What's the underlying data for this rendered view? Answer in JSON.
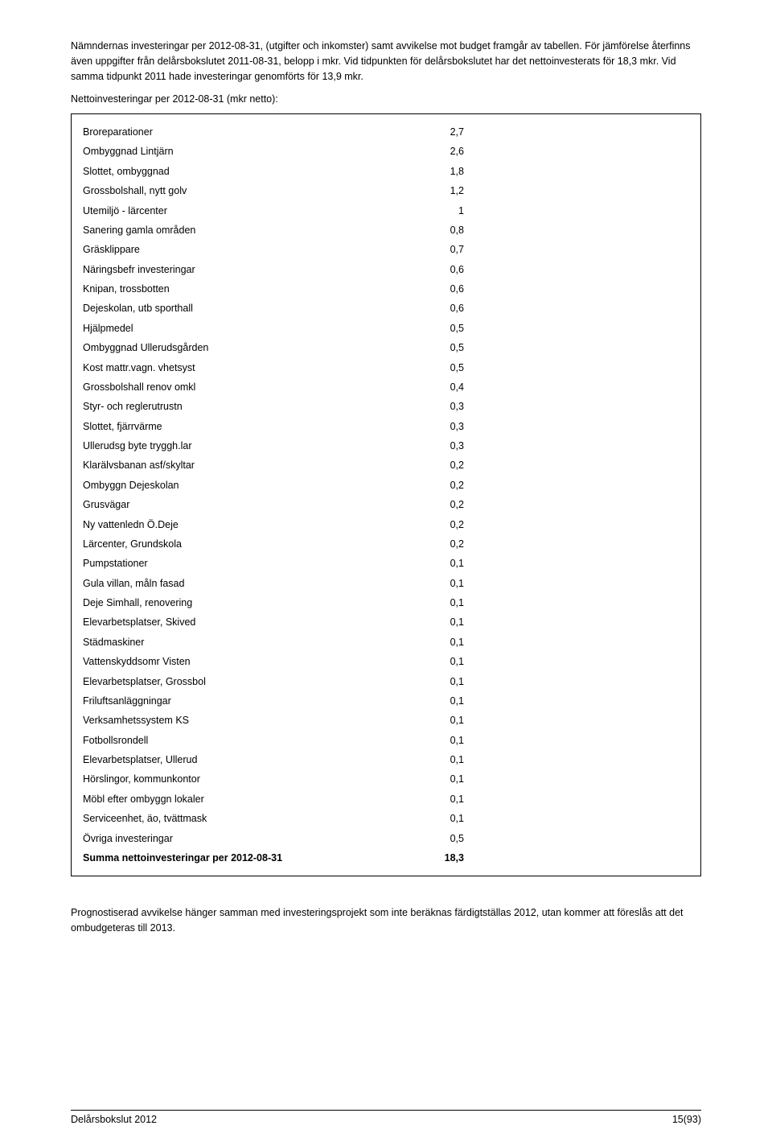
{
  "intro": "Nämndernas investeringar per 2012-08-31, (utgifter och inkomster) samt avvikelse mot budget framgår av tabellen. För jämförelse återfinns även uppgifter från delårsbokslutet 2011-08-31, belopp i mkr. Vid tidpunkten för delårsbokslutet har det nettoinvesterats för 18,3 mkr. Vid samma tidpunkt 2011 hade investeringar genomförts för 13,9 mkr.",
  "tableTitle": "Nettoinvesteringar per 2012-08-31 (mkr netto):",
  "rows": [
    {
      "label": "Broreparationer",
      "value": "2,7"
    },
    {
      "label": "Ombyggnad Lintjärn",
      "value": "2,6"
    },
    {
      "label": "Slottet, ombyggnad",
      "value": "1,8"
    },
    {
      "label": "Grossbolshall, nytt golv",
      "value": "1,2"
    },
    {
      "label": "Utemiljö - lärcenter",
      "value": "1"
    },
    {
      "label": "Sanering gamla områden",
      "value": "0,8"
    },
    {
      "label": "Gräsklippare",
      "value": "0,7"
    },
    {
      "label": "Näringsbefr investeringar",
      "value": "0,6"
    },
    {
      "label": "Knipan, trossbotten",
      "value": "0,6"
    },
    {
      "label": "Dejeskolan, utb sporthall",
      "value": "0,6"
    },
    {
      "label": "Hjälpmedel",
      "value": "0,5"
    },
    {
      "label": "Ombyggnad Ullerudsgården",
      "value": "0,5"
    },
    {
      "label": "Kost mattr.vagn. vhetsyst",
      "value": "0,5"
    },
    {
      "label": "Grossbolshall renov omkl",
      "value": "0,4"
    },
    {
      "label": "Styr- och reglerutrustn",
      "value": "0,3"
    },
    {
      "label": "Slottet, fjärrvärme",
      "value": "0,3"
    },
    {
      "label": "Ullerudsg byte tryggh.lar",
      "value": "0,3"
    },
    {
      "label": "Klarälvsbanan asf/skyltar",
      "value": "0,2"
    },
    {
      "label": "Ombyggn Dejeskolan",
      "value": "0,2"
    },
    {
      "label": "Grusvägar",
      "value": "0,2"
    },
    {
      "label": "Ny vattenledn Ö.Deje",
      "value": "0,2"
    },
    {
      "label": "Lärcenter, Grundskola",
      "value": "0,2"
    },
    {
      "label": "Pumpstationer",
      "value": "0,1"
    },
    {
      "label": "Gula villan, måln fasad",
      "value": "0,1"
    },
    {
      "label": "Deje Simhall, renovering",
      "value": "0,1"
    },
    {
      "label": "Elevarbetsplatser, Skived",
      "value": "0,1"
    },
    {
      "label": "Städmaskiner",
      "value": "0,1"
    },
    {
      "label": "Vattenskyddsomr Visten",
      "value": "0,1"
    },
    {
      "label": "Elevarbetsplatser, Grossbol",
      "value": "0,1"
    },
    {
      "label": "Friluftsanläggningar",
      "value": "0,1"
    },
    {
      "label": "Verksamhetssystem KS",
      "value": "0,1"
    },
    {
      "label": "Fotbollsrondell",
      "value": "0,1"
    },
    {
      "label": "Elevarbetsplatser, Ullerud",
      "value": "0,1"
    },
    {
      "label": "Hörslingor, kommunkontor",
      "value": "0,1"
    },
    {
      "label": "Möbl efter ombyggn lokaler",
      "value": "0,1"
    },
    {
      "label": "Serviceenhet, äo, tvättmask",
      "value": "0,1"
    },
    {
      "label": "Övriga investeringar",
      "value": "0,5"
    }
  ],
  "sumRow": {
    "label": "Summa nettoinvesteringar per 2012-08-31",
    "value": "18,3"
  },
  "afterbox": "Prognostiserad avvikelse hänger samman med investeringsprojekt som inte beräknas färdigtställas 2012, utan kommer att föreslås att det ombudgeteras till 2013.",
  "footerLeft": "Delårsbokslut 2012",
  "footerRight": "15(93)"
}
